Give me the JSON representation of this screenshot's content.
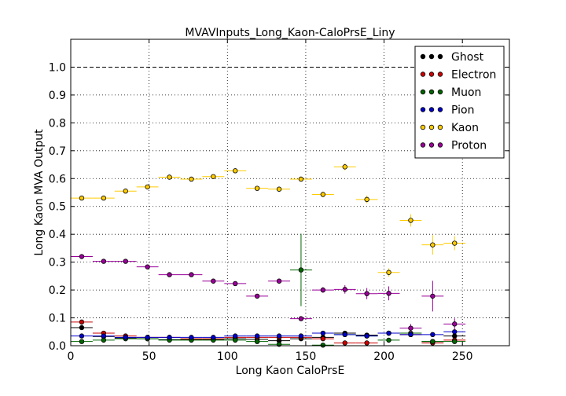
{
  "chart_data": {
    "type": "scatter",
    "title": "MVAVInputs_Long_Kaon-CaloPrsE_Liny",
    "xlabel": "Long Kaon CaloPrsE",
    "ylabel": "Long Kaon MVA Output",
    "xlim": [
      0,
      280
    ],
    "ylim": [
      0,
      1.1
    ],
    "x_ticks": [
      "0",
      "50",
      "100",
      "150",
      "200",
      "250"
    ],
    "y_ticks": [
      "0.0",
      "0.1",
      "0.2",
      "0.3",
      "0.4",
      "0.5",
      "0.6",
      "0.7",
      "0.8",
      "0.9",
      "1.0"
    ],
    "grid": true,
    "reference_line_y": 1.0,
    "legend_placement": "top-right",
    "x_bin_half_width": 7,
    "series": [
      {
        "name": "Ghost",
        "color": "#000000",
        "points": [
          {
            "x": 7,
            "y": 0.065,
            "yerr": 0.005
          },
          {
            "x": 21,
            "y": 0.033,
            "yerr": 0.004
          },
          {
            "x": 35,
            "y": 0.028,
            "yerr": 0.004
          },
          {
            "x": 49,
            "y": 0.025,
            "yerr": 0.004
          },
          {
            "x": 63,
            "y": 0.022,
            "yerr": 0.004
          },
          {
            "x": 77,
            "y": 0.022,
            "yerr": 0.004
          },
          {
            "x": 91,
            "y": 0.022,
            "yerr": 0.004
          },
          {
            "x": 105,
            "y": 0.025,
            "yerr": 0.005
          },
          {
            "x": 119,
            "y": 0.023,
            "yerr": 0.005
          },
          {
            "x": 133,
            "y": 0.018,
            "yerr": 0.005
          },
          {
            "x": 147,
            "y": 0.025,
            "yerr": 0.006
          },
          {
            "x": 161,
            "y": 0.03,
            "yerr": 0.006
          },
          {
            "x": 175,
            "y": 0.045,
            "yerr": 0.007
          },
          {
            "x": 189,
            "y": 0.038,
            "yerr": 0.007
          },
          {
            "x": 203,
            "y": 0.045,
            "yerr": 0.008
          },
          {
            "x": 217,
            "y": 0.04,
            "yerr": 0.008
          },
          {
            "x": 231,
            "y": 0.015,
            "yerr": 0.006
          },
          {
            "x": 245,
            "y": 0.035,
            "yerr": 0.008
          }
        ]
      },
      {
        "name": "Electron",
        "color": "#cc0000",
        "points": [
          {
            "x": 7,
            "y": 0.085,
            "yerr": 0.006
          },
          {
            "x": 21,
            "y": 0.045,
            "yerr": 0.005
          },
          {
            "x": 35,
            "y": 0.035,
            "yerr": 0.004
          },
          {
            "x": 49,
            "y": 0.03,
            "yerr": 0.004
          },
          {
            "x": 63,
            "y": 0.03,
            "yerr": 0.004
          },
          {
            "x": 77,
            "y": 0.025,
            "yerr": 0.004
          },
          {
            "x": 91,
            "y": 0.025,
            "yerr": 0.004
          },
          {
            "x": 105,
            "y": 0.03,
            "yerr": 0.005
          },
          {
            "x": 119,
            "y": 0.03,
            "yerr": 0.005
          },
          {
            "x": 133,
            "y": 0.03,
            "yerr": 0.005
          },
          {
            "x": 147,
            "y": 0.03,
            "yerr": 0.006
          },
          {
            "x": 161,
            "y": 0.025,
            "yerr": 0.006
          },
          {
            "x": 175,
            "y": 0.01,
            "yerr": 0.005
          },
          {
            "x": 189,
            "y": 0.01,
            "yerr": 0.005
          },
          {
            "x": 203,
            "y": 0.045,
            "yerr": 0.008
          },
          {
            "x": 217,
            "y": 0.04,
            "yerr": 0.008
          },
          {
            "x": 231,
            "y": 0.01,
            "yerr": 0.005
          },
          {
            "x": 245,
            "y": 0.02,
            "yerr": 0.006
          }
        ]
      },
      {
        "name": "Muon",
        "color": "#006600",
        "points": [
          {
            "x": 7,
            "y": 0.015,
            "yerr": 0.003
          },
          {
            "x": 21,
            "y": 0.02,
            "yerr": 0.003
          },
          {
            "x": 35,
            "y": 0.025,
            "yerr": 0.003
          },
          {
            "x": 49,
            "y": 0.025,
            "yerr": 0.004
          },
          {
            "x": 63,
            "y": 0.02,
            "yerr": 0.004
          },
          {
            "x": 77,
            "y": 0.02,
            "yerr": 0.004
          },
          {
            "x": 91,
            "y": 0.02,
            "yerr": 0.004
          },
          {
            "x": 105,
            "y": 0.02,
            "yerr": 0.005
          },
          {
            "x": 119,
            "y": 0.015,
            "yerr": 0.005
          },
          {
            "x": 133,
            "y": 0.005,
            "yerr": 0.004
          },
          {
            "x": 147,
            "y": 0.272,
            "yerr": 0.13
          },
          {
            "x": 161,
            "y": 0.002,
            "yerr": 0.004
          },
          {
            "x": 175,
            "y": 0.04,
            "yerr": 0.008
          },
          {
            "x": 189,
            "y": 0.035,
            "yerr": 0.008
          },
          {
            "x": 203,
            "y": 0.02,
            "yerr": 0.006
          },
          {
            "x": 217,
            "y": 0.045,
            "yerr": 0.009
          },
          {
            "x": 231,
            "y": 0.015,
            "yerr": 0.006
          },
          {
            "x": 245,
            "y": 0.015,
            "yerr": 0.006
          }
        ]
      },
      {
        "name": "Pion",
        "color": "#0000cc",
        "points": [
          {
            "x": 7,
            "y": 0.035,
            "yerr": 0.003
          },
          {
            "x": 21,
            "y": 0.035,
            "yerr": 0.003
          },
          {
            "x": 35,
            "y": 0.03,
            "yerr": 0.003
          },
          {
            "x": 49,
            "y": 0.03,
            "yerr": 0.003
          },
          {
            "x": 63,
            "y": 0.03,
            "yerr": 0.003
          },
          {
            "x": 77,
            "y": 0.03,
            "yerr": 0.003
          },
          {
            "x": 91,
            "y": 0.03,
            "yerr": 0.003
          },
          {
            "x": 105,
            "y": 0.035,
            "yerr": 0.004
          },
          {
            "x": 119,
            "y": 0.035,
            "yerr": 0.004
          },
          {
            "x": 133,
            "y": 0.035,
            "yerr": 0.004
          },
          {
            "x": 147,
            "y": 0.035,
            "yerr": 0.004
          },
          {
            "x": 161,
            "y": 0.045,
            "yerr": 0.005
          },
          {
            "x": 175,
            "y": 0.04,
            "yerr": 0.005
          },
          {
            "x": 189,
            "y": 0.035,
            "yerr": 0.005
          },
          {
            "x": 203,
            "y": 0.045,
            "yerr": 0.006
          },
          {
            "x": 217,
            "y": 0.04,
            "yerr": 0.006
          },
          {
            "x": 231,
            "y": 0.04,
            "yerr": 0.006
          },
          {
            "x": 245,
            "y": 0.05,
            "yerr": 0.007
          }
        ]
      },
      {
        "name": "Kaon",
        "color": "#ffcc00",
        "points": [
          {
            "x": 7,
            "y": 0.53,
            "yerr": 0.006
          },
          {
            "x": 21,
            "y": 0.53,
            "yerr": 0.006
          },
          {
            "x": 35,
            "y": 0.555,
            "yerr": 0.006
          },
          {
            "x": 49,
            "y": 0.57,
            "yerr": 0.006
          },
          {
            "x": 63,
            "y": 0.605,
            "yerr": 0.006
          },
          {
            "x": 77,
            "y": 0.598,
            "yerr": 0.006
          },
          {
            "x": 91,
            "y": 0.607,
            "yerr": 0.007
          },
          {
            "x": 105,
            "y": 0.628,
            "yerr": 0.007
          },
          {
            "x": 119,
            "y": 0.565,
            "yerr": 0.008
          },
          {
            "x": 133,
            "y": 0.562,
            "yerr": 0.008
          },
          {
            "x": 147,
            "y": 0.598,
            "yerr": 0.009
          },
          {
            "x": 161,
            "y": 0.543,
            "yerr": 0.01
          },
          {
            "x": 175,
            "y": 0.642,
            "yerr": 0.012
          },
          {
            "x": 189,
            "y": 0.525,
            "yerr": 0.014
          },
          {
            "x": 203,
            "y": 0.263,
            "yerr": 0.015
          },
          {
            "x": 217,
            "y": 0.45,
            "yerr": 0.022
          },
          {
            "x": 231,
            "y": 0.362,
            "yerr": 0.035
          },
          {
            "x": 245,
            "y": 0.368,
            "yerr": 0.025
          }
        ]
      },
      {
        "name": "Proton",
        "color": "#990099",
        "points": [
          {
            "x": 7,
            "y": 0.32,
            "yerr": 0.005
          },
          {
            "x": 21,
            "y": 0.303,
            "yerr": 0.005
          },
          {
            "x": 35,
            "y": 0.303,
            "yerr": 0.005
          },
          {
            "x": 49,
            "y": 0.283,
            "yerr": 0.005
          },
          {
            "x": 63,
            "y": 0.255,
            "yerr": 0.005
          },
          {
            "x": 77,
            "y": 0.255,
            "yerr": 0.006
          },
          {
            "x": 91,
            "y": 0.232,
            "yerr": 0.006
          },
          {
            "x": 105,
            "y": 0.223,
            "yerr": 0.006
          },
          {
            "x": 119,
            "y": 0.178,
            "yerr": 0.007
          },
          {
            "x": 133,
            "y": 0.232,
            "yerr": 0.008
          },
          {
            "x": 147,
            "y": 0.097,
            "yerr": 0.008
          },
          {
            "x": 161,
            "y": 0.2,
            "yerr": 0.01
          },
          {
            "x": 175,
            "y": 0.202,
            "yerr": 0.015
          },
          {
            "x": 189,
            "y": 0.187,
            "yerr": 0.02
          },
          {
            "x": 203,
            "y": 0.188,
            "yerr": 0.025
          },
          {
            "x": 217,
            "y": 0.063,
            "yerr": 0.015
          },
          {
            "x": 231,
            "y": 0.178,
            "yerr": 0.055
          },
          {
            "x": 245,
            "y": 0.078,
            "yerr": 0.02
          }
        ]
      }
    ]
  }
}
